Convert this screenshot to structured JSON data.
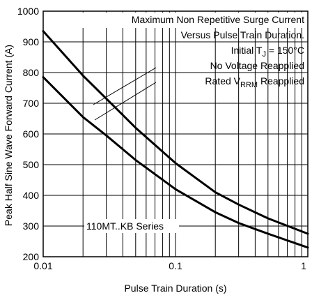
{
  "chart_data": {
    "type": "line",
    "xscale": "log",
    "xlim": [
      0.01,
      1
    ],
    "ylim": [
      200,
      1000
    ],
    "xlabel": "Pulse Train Duration (s)",
    "ylabel": "Peak Half Sine Wave Forward Current (A)",
    "x_ticks": [
      "0.01",
      "0.1",
      "1"
    ],
    "y_ticks": [
      "200",
      "300",
      "400",
      "500",
      "600",
      "700",
      "800",
      "900",
      "1000"
    ],
    "grid": true,
    "annotations": {
      "line1": "Maximum Non Repetitive Surge Current",
      "line2": "Versus Pulse Train Duration.",
      "line3_prefix": "Initial T",
      "line3_sub": "J",
      "line3_suffix": " = 150°C",
      "line4": "No Voltage Reapplied",
      "line5_prefix": "Rated V",
      "line5_sub": "RRM",
      "line5_suffix": " Reapplied",
      "series_label": "110MT..KB Series"
    },
    "series": [
      {
        "x": [
          0.01,
          0.02,
          0.03,
          0.05,
          0.1,
          0.2,
          0.3,
          0.5,
          1.0
        ],
        "y": [
          935,
          790,
          715,
          620,
          505,
          410,
          370,
          325,
          275
        ]
      },
      {
        "x": [
          0.01,
          0.02,
          0.03,
          0.05,
          0.1,
          0.2,
          0.3,
          0.5,
          1.0
        ],
        "y": [
          785,
          655,
          595,
          515,
          420,
          345,
          310,
          275,
          230
        ]
      }
    ]
  }
}
